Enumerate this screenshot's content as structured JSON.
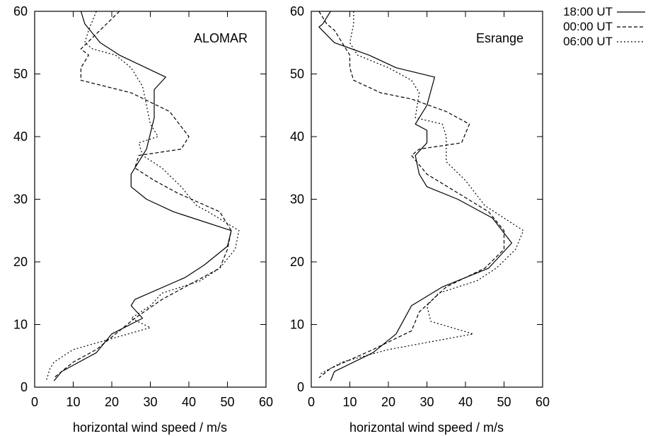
{
  "chart_data": [
    {
      "type": "line",
      "title": "",
      "annotation": "ALOMAR",
      "xlabel": "horizontal wind speed / m/s",
      "ylabel": "",
      "xlim": [
        0,
        60
      ],
      "ylim": [
        0,
        60
      ],
      "xticks": [
        0,
        10,
        20,
        30,
        40,
        50,
        60
      ],
      "yticks": [
        0,
        10,
        20,
        30,
        40,
        50,
        60
      ],
      "grid": false,
      "series": [
        {
          "name": "18:00 UT",
          "dash": "solid",
          "x": [
            12,
            13,
            17,
            22,
            34,
            31,
            31,
            29,
            25,
            25,
            29,
            36,
            51,
            50,
            44,
            39,
            26,
            25,
            28,
            20,
            16,
            7,
            5
          ],
          "y": [
            60,
            58,
            55,
            53,
            49.5,
            47.5,
            43,
            38,
            34,
            32,
            30,
            28,
            25,
            22.5,
            19.5,
            17.5,
            14,
            13,
            11,
            8.5,
            5.5,
            2.5,
            1
          ]
        },
        {
          "name": "00:00 UT",
          "dash": "dashed",
          "x": [
            22,
            17,
            12,
            14,
            12,
            12,
            25,
            35,
            40,
            38,
            27,
            26,
            31,
            37,
            48,
            51,
            50,
            48,
            39,
            33,
            26,
            16,
            10,
            5
          ],
          "y": [
            60,
            57,
            54,
            53,
            51,
            49,
            47,
            44,
            40,
            38,
            37,
            35,
            33,
            31,
            28,
            25,
            22,
            19,
            16,
            14,
            11,
            6,
            4,
            1.5
          ]
        },
        {
          "name": "06:00 UT",
          "dash": "dotted",
          "x": [
            16,
            14,
            13,
            15,
            21,
            25,
            28,
            29,
            30,
            32,
            27,
            28,
            33,
            38,
            42,
            45,
            53,
            52,
            48,
            43,
            33,
            30,
            25,
            30,
            10,
            5,
            4,
            3
          ],
          "y": [
            60,
            57,
            55,
            54,
            53,
            51,
            48,
            45,
            42,
            40,
            39,
            37,
            35,
            32,
            29,
            28,
            25,
            22,
            19,
            17,
            15,
            13,
            11,
            9.5,
            6,
            4,
            3,
            1
          ]
        }
      ]
    },
    {
      "type": "line",
      "title": "",
      "annotation": "Esrange",
      "xlabel": "horizontal wind speed / m/s",
      "ylabel": "",
      "xlim": [
        0,
        60
      ],
      "ylim": [
        0,
        60
      ],
      "xticks": [
        0,
        10,
        20,
        30,
        40,
        50,
        60
      ],
      "yticks": [
        0,
        10,
        20,
        30,
        40,
        50,
        60
      ],
      "grid": false,
      "series": [
        {
          "name": "18:00 UT",
          "dash": "solid",
          "x": [
            5,
            3,
            2,
            6,
            15,
            22,
            32,
            30,
            28,
            27,
            30,
            30,
            27,
            28,
            30,
            38,
            47,
            52,
            46,
            34,
            26,
            22,
            16,
            6,
            5
          ],
          "y": [
            60,
            58,
            57.5,
            55,
            53,
            51,
            49.5,
            45,
            43,
            42,
            41,
            39,
            37,
            34,
            32,
            30,
            27,
            23,
            19,
            16,
            13,
            8.5,
            5.5,
            2.5,
            1
          ]
        },
        {
          "name": "00:00 UT",
          "dash": "dashed",
          "x": [
            2,
            4,
            6,
            8,
            10,
            10,
            11,
            18,
            26,
            35,
            41,
            39,
            28,
            26,
            30,
            38,
            46,
            50,
            50,
            45,
            35,
            28,
            26,
            16,
            5,
            2
          ],
          "y": [
            60,
            58,
            57,
            55,
            53,
            51,
            49,
            47,
            46,
            44,
            42,
            39,
            38,
            37,
            34,
            31,
            28,
            25,
            22,
            19,
            16,
            12,
            9,
            6,
            3,
            1.5
          ]
        },
        {
          "name": "06:00 UT",
          "dash": "dotted",
          "x": [
            11,
            11,
            10,
            12,
            20,
            26,
            28,
            27,
            34,
            35,
            35,
            40,
            45,
            55,
            53,
            48,
            43,
            33,
            30,
            31,
            42,
            20,
            8,
            2
          ],
          "y": [
            60,
            58,
            55,
            53,
            51,
            49,
            47,
            43,
            42,
            40,
            36,
            33,
            29,
            25,
            22,
            19,
            17,
            15,
            13,
            10.5,
            8.5,
            6,
            4,
            2
          ]
        }
      ]
    }
  ],
  "legend": {
    "placement": "top-right",
    "entries": [
      {
        "label": "18:00 UT",
        "dash": "solid"
      },
      {
        "label": "00:00 UT",
        "dash": "dashed"
      },
      {
        "label": "06:00 UT",
        "dash": "dotted"
      }
    ]
  }
}
